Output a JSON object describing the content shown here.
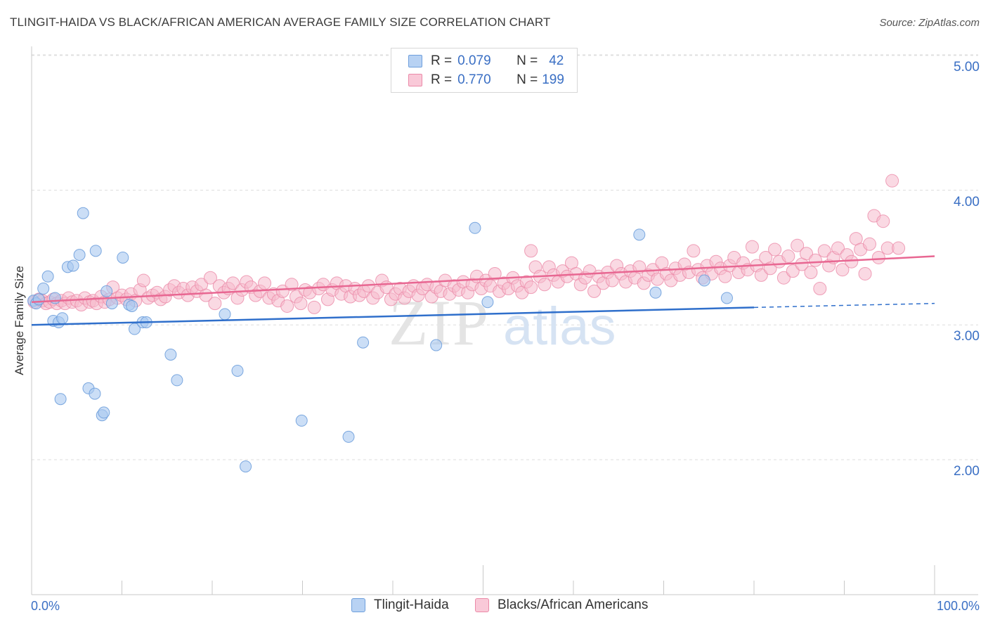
{
  "title": "TLINGIT-HAIDA VS BLACK/AFRICAN AMERICAN AVERAGE FAMILY SIZE CORRELATION CHART",
  "source": "Source: ZipAtlas.com",
  "watermark": {
    "zip": "ZIP",
    "atlas": "atlas"
  },
  "legend": {
    "rows": [
      {
        "r_label": "R =",
        "r_value": "0.079",
        "n_label": "N =",
        "n_value": "42"
      },
      {
        "r_label": "R =",
        "r_value": "0.770",
        "n_label": "N =",
        "n_value": "199"
      }
    ]
  },
  "colors": {
    "blue_fill": "#a9c8f0",
    "blue_stroke": "#6e9fdc",
    "blue_line": "#2f6fcb",
    "pink_fill": "#f6b9cc",
    "pink_stroke": "#eb8aa8",
    "pink_line": "#e86792",
    "tick_text": "#3a6fc4",
    "grid": "#dddddd"
  },
  "chart_data": {
    "type": "scatter",
    "title": "TLINGIT-HAIDA VS BLACK/AFRICAN AMERICAN AVERAGE FAMILY SIZE CORRELATION CHART",
    "xlabel": "",
    "ylabel": "Average Family Size",
    "xlim": [
      0,
      100
    ],
    "ylim": [
      1.0,
      5.1
    ],
    "x_tick_labels": [
      "0.0%",
      "100.0%"
    ],
    "y_ticks": [
      2.0,
      3.0,
      4.0,
      5.0
    ],
    "y_tick_labels": [
      "2.00",
      "3.00",
      "4.00",
      "5.00"
    ],
    "grid": "horizontal dashed",
    "legend_position": "bottom",
    "series": [
      {
        "name": "Tlingit-Haida",
        "color": "#a9c8f0",
        "points": [
          [
            0.2,
            3.18
          ],
          [
            1.3,
            3.27
          ],
          [
            1.8,
            3.36
          ],
          [
            2.4,
            3.03
          ],
          [
            2.6,
            3.2
          ],
          [
            3.0,
            3.02
          ],
          [
            3.4,
            3.05
          ],
          [
            4.0,
            3.43
          ],
          [
            4.6,
            3.44
          ],
          [
            5.3,
            3.52
          ],
          [
            5.7,
            3.83
          ],
          [
            6.3,
            2.53
          ],
          [
            7.0,
            2.49
          ],
          [
            7.8,
            2.33
          ],
          [
            8.0,
            2.35
          ],
          [
            8.3,
            3.25
          ],
          [
            8.9,
            3.16
          ],
          [
            10.1,
            3.5
          ],
          [
            10.8,
            3.15
          ],
          [
            11.1,
            3.14
          ],
          [
            11.4,
            2.97
          ],
          [
            12.3,
            3.02
          ],
          [
            12.7,
            3.02
          ],
          [
            3.2,
            2.45
          ],
          [
            7.1,
            3.55
          ],
          [
            15.4,
            2.78
          ],
          [
            16.1,
            2.59
          ],
          [
            21.4,
            3.08
          ],
          [
            22.8,
            2.66
          ],
          [
            23.7,
            1.95
          ],
          [
            29.9,
            2.29
          ],
          [
            35.1,
            2.17
          ],
          [
            36.7,
            2.87
          ],
          [
            44.8,
            2.85
          ],
          [
            49.1,
            3.72
          ],
          [
            50.5,
            3.17
          ],
          [
            67.3,
            3.67
          ],
          [
            69.1,
            3.24
          ],
          [
            74.5,
            3.33
          ],
          [
            77.0,
            3.2
          ],
          [
            0.5,
            3.16
          ],
          [
            0.8,
            3.19
          ]
        ]
      },
      {
        "name": "Blacks/African Americans",
        "color": "#f6b9cc",
        "points": [
          [
            0.3,
            3.17
          ],
          [
            0.8,
            3.19
          ],
          [
            1.2,
            3.18
          ],
          [
            1.6,
            3.16
          ],
          [
            2.0,
            3.17
          ],
          [
            2.4,
            3.19
          ],
          [
            2.8,
            3.16
          ],
          [
            3.3,
            3.18
          ],
          [
            3.7,
            3.16
          ],
          [
            4.1,
            3.2
          ],
          [
            4.5,
            3.17
          ],
          [
            5.0,
            3.18
          ],
          [
            5.5,
            3.15
          ],
          [
            5.9,
            3.2
          ],
          [
            6.4,
            3.17
          ],
          [
            6.8,
            3.18
          ],
          [
            7.2,
            3.16
          ],
          [
            7.7,
            3.21
          ],
          [
            8.1,
            3.17
          ],
          [
            8.6,
            3.19
          ],
          [
            9.0,
            3.28
          ],
          [
            9.5,
            3.2
          ],
          [
            10.0,
            3.22
          ],
          [
            10.5,
            3.19
          ],
          [
            11.0,
            3.23
          ],
          [
            11.5,
            3.18
          ],
          [
            12.0,
            3.26
          ],
          [
            12.4,
            3.33
          ],
          [
            12.9,
            3.2
          ],
          [
            13.4,
            3.22
          ],
          [
            13.9,
            3.24
          ],
          [
            14.3,
            3.19
          ],
          [
            14.8,
            3.21
          ],
          [
            15.3,
            3.26
          ],
          [
            15.8,
            3.29
          ],
          [
            16.3,
            3.24
          ],
          [
            16.8,
            3.27
          ],
          [
            17.3,
            3.22
          ],
          [
            17.8,
            3.28
          ],
          [
            18.3,
            3.25
          ],
          [
            18.8,
            3.3
          ],
          [
            19.3,
            3.22
          ],
          [
            19.8,
            3.35
          ],
          [
            20.3,
            3.16
          ],
          [
            20.8,
            3.29
          ],
          [
            21.3,
            3.24
          ],
          [
            21.8,
            3.27
          ],
          [
            22.3,
            3.31
          ],
          [
            22.8,
            3.2
          ],
          [
            23.3,
            3.26
          ],
          [
            23.8,
            3.32
          ],
          [
            24.3,
            3.28
          ],
          [
            24.8,
            3.22
          ],
          [
            25.3,
            3.25
          ],
          [
            25.8,
            3.31
          ],
          [
            26.3,
            3.2
          ],
          [
            26.8,
            3.23
          ],
          [
            27.3,
            3.18
          ],
          [
            27.8,
            3.25
          ],
          [
            28.3,
            3.14
          ],
          [
            28.8,
            3.3
          ],
          [
            29.3,
            3.21
          ],
          [
            29.8,
            3.16
          ],
          [
            30.3,
            3.26
          ],
          [
            30.8,
            3.24
          ],
          [
            31.3,
            3.13
          ],
          [
            31.8,
            3.27
          ],
          [
            32.3,
            3.3
          ],
          [
            32.8,
            3.19
          ],
          [
            33.3,
            3.26
          ],
          [
            33.8,
            3.31
          ],
          [
            34.3,
            3.23
          ],
          [
            34.8,
            3.29
          ],
          [
            35.3,
            3.21
          ],
          [
            35.8,
            3.27
          ],
          [
            36.3,
            3.22
          ],
          [
            36.8,
            3.25
          ],
          [
            37.3,
            3.29
          ],
          [
            37.8,
            3.2
          ],
          [
            38.3,
            3.24
          ],
          [
            38.8,
            3.33
          ],
          [
            39.3,
            3.28
          ],
          [
            39.8,
            3.19
          ],
          [
            40.3,
            3.23
          ],
          [
            40.8,
            3.27
          ],
          [
            41.3,
            3.2
          ],
          [
            41.8,
            3.25
          ],
          [
            42.3,
            3.29
          ],
          [
            42.8,
            3.22
          ],
          [
            43.3,
            3.27
          ],
          [
            43.8,
            3.3
          ],
          [
            44.3,
            3.21
          ],
          [
            44.8,
            3.28
          ],
          [
            45.3,
            3.25
          ],
          [
            45.8,
            3.33
          ],
          [
            46.3,
            3.23
          ],
          [
            46.8,
            3.29
          ],
          [
            47.3,
            3.26
          ],
          [
            47.8,
            3.32
          ],
          [
            48.3,
            3.24
          ],
          [
            48.8,
            3.3
          ],
          [
            49.3,
            3.36
          ],
          [
            49.8,
            3.27
          ],
          [
            50.3,
            3.33
          ],
          [
            50.8,
            3.29
          ],
          [
            51.3,
            3.38
          ],
          [
            51.8,
            3.25
          ],
          [
            52.3,
            3.31
          ],
          [
            52.8,
            3.27
          ],
          [
            53.3,
            3.35
          ],
          [
            53.8,
            3.29
          ],
          [
            54.3,
            3.24
          ],
          [
            54.8,
            3.32
          ],
          [
            55.3,
            3.28
          ],
          [
            55.8,
            3.43
          ],
          [
            56.3,
            3.36
          ],
          [
            56.8,
            3.3
          ],
          [
            57.3,
            3.43
          ],
          [
            57.8,
            3.37
          ],
          [
            58.3,
            3.32
          ],
          [
            58.8,
            3.4
          ],
          [
            59.3,
            3.36
          ],
          [
            59.8,
            3.46
          ],
          [
            60.3,
            3.38
          ],
          [
            60.8,
            3.3
          ],
          [
            61.3,
            3.35
          ],
          [
            61.8,
            3.4
          ],
          [
            62.3,
            3.25
          ],
          [
            62.8,
            3.36
          ],
          [
            63.3,
            3.31
          ],
          [
            63.8,
            3.39
          ],
          [
            64.3,
            3.33
          ],
          [
            64.8,
            3.44
          ],
          [
            65.3,
            3.38
          ],
          [
            65.8,
            3.32
          ],
          [
            66.3,
            3.4
          ],
          [
            66.8,
            3.35
          ],
          [
            67.3,
            3.43
          ],
          [
            67.8,
            3.31
          ],
          [
            68.3,
            3.37
          ],
          [
            68.8,
            3.41
          ],
          [
            69.3,
            3.34
          ],
          [
            69.8,
            3.46
          ],
          [
            70.3,
            3.38
          ],
          [
            70.8,
            3.33
          ],
          [
            71.3,
            3.42
          ],
          [
            71.8,
            3.37
          ],
          [
            72.3,
            3.45
          ],
          [
            72.8,
            3.39
          ],
          [
            73.3,
            3.55
          ],
          [
            73.8,
            3.41
          ],
          [
            74.3,
            3.35
          ],
          [
            74.8,
            3.44
          ],
          [
            75.3,
            3.38
          ],
          [
            75.8,
            3.47
          ],
          [
            76.3,
            3.42
          ],
          [
            76.8,
            3.36
          ],
          [
            77.3,
            3.44
          ],
          [
            77.8,
            3.5
          ],
          [
            78.3,
            3.39
          ],
          [
            78.8,
            3.46
          ],
          [
            79.3,
            3.41
          ],
          [
            79.8,
            3.58
          ],
          [
            80.3,
            3.44
          ],
          [
            80.8,
            3.37
          ],
          [
            81.3,
            3.5
          ],
          [
            81.8,
            3.42
          ],
          [
            82.3,
            3.56
          ],
          [
            82.8,
            3.47
          ],
          [
            83.3,
            3.35
          ],
          [
            83.8,
            3.51
          ],
          [
            84.3,
            3.4
          ],
          [
            84.8,
            3.59
          ],
          [
            85.3,
            3.45
          ],
          [
            85.8,
            3.53
          ],
          [
            86.3,
            3.39
          ],
          [
            86.8,
            3.48
          ],
          [
            87.3,
            3.27
          ],
          [
            87.8,
            3.55
          ],
          [
            88.3,
            3.44
          ],
          [
            88.8,
            3.5
          ],
          [
            89.3,
            3.57
          ],
          [
            89.8,
            3.41
          ],
          [
            90.3,
            3.52
          ],
          [
            90.8,
            3.47
          ],
          [
            91.3,
            3.64
          ],
          [
            91.8,
            3.56
          ],
          [
            92.3,
            3.38
          ],
          [
            92.8,
            3.6
          ],
          [
            93.3,
            3.81
          ],
          [
            93.8,
            3.5
          ],
          [
            94.3,
            3.77
          ],
          [
            94.8,
            3.57
          ],
          [
            95.3,
            4.07
          ],
          [
            96.0,
            3.57
          ],
          [
            55.3,
            3.55
          ]
        ]
      }
    ],
    "trend_lines": [
      {
        "series": "Tlingit-Haida",
        "x": [
          0,
          80
        ],
        "y": [
          3.0,
          3.13
        ],
        "dashed_extension_to": [
          100,
          3.16
        ]
      },
      {
        "series": "Blacks/African Americans",
        "x": [
          0,
          100
        ],
        "y": [
          3.17,
          3.51
        ]
      }
    ]
  }
}
